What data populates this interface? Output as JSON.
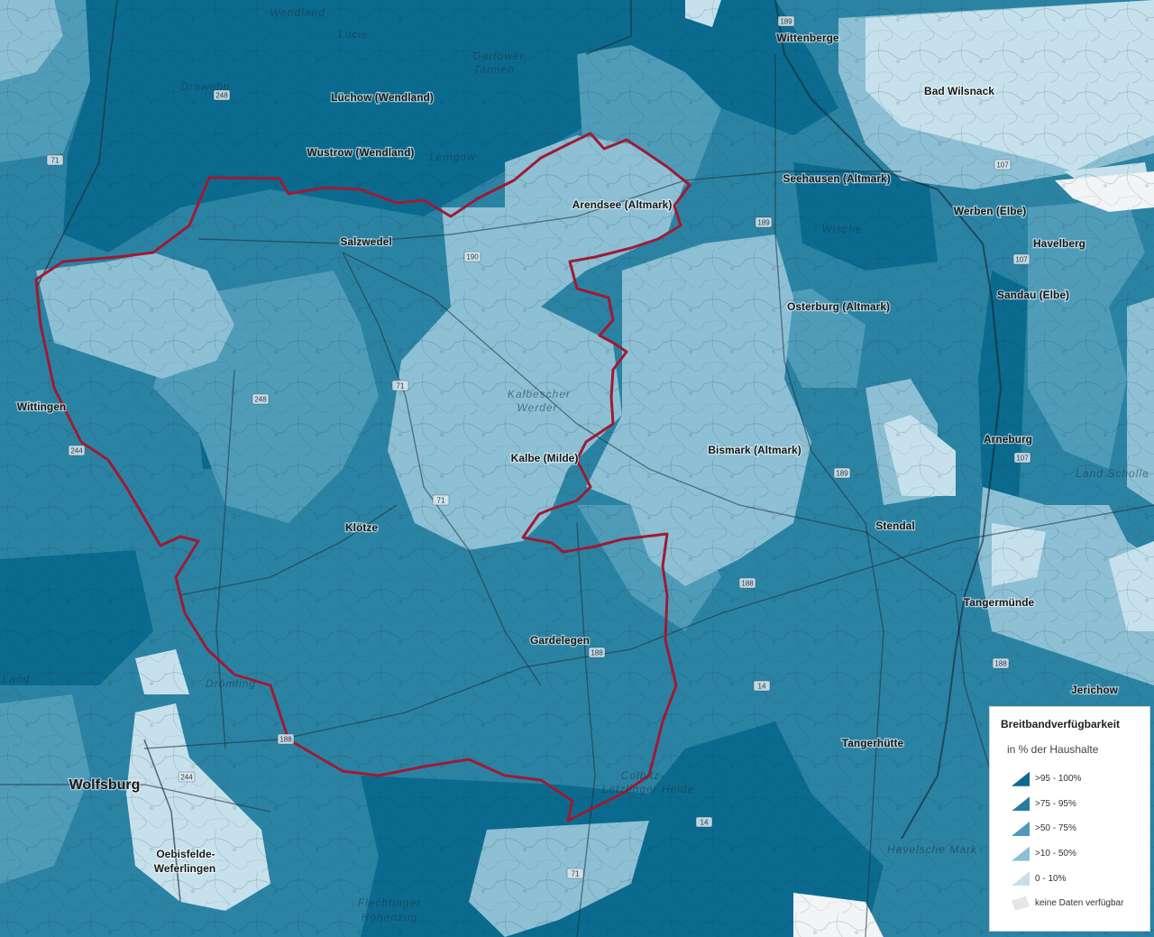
{
  "places": [
    {
      "name": "Wittenberge"
    },
    {
      "name": "Bad Wilsnack"
    },
    {
      "name": "Lüchow (Wendland)"
    },
    {
      "name": "Wustrow (Wendland)"
    },
    {
      "name": "Seehausen (Altmark)"
    },
    {
      "name": "Arendsee (Altmark)"
    },
    {
      "name": "Werben (Elbe)"
    },
    {
      "name": "Salzwedel"
    },
    {
      "name": "Havelberg"
    },
    {
      "name": "Sandau (Elbe)"
    },
    {
      "name": "Osterburg (Altmark)"
    },
    {
      "name": "Wittingen"
    },
    {
      "name": "Arneburg"
    },
    {
      "name": "Bismark (Altmark)"
    },
    {
      "name": "Kalbe (Milde)"
    },
    {
      "name": "Stendal"
    },
    {
      "name": "Klötze"
    },
    {
      "name": "Tangermünde"
    },
    {
      "name": "Gardelegen"
    },
    {
      "name": "Jerichow"
    },
    {
      "name": "Tangerhütte"
    },
    {
      "name": "Wolfsburg"
    },
    {
      "name": "Oebisfelde-"
    },
    {
      "name": "Weferlingen"
    }
  ],
  "regions": [
    {
      "name": "Wendland"
    },
    {
      "name": "Lucie"
    },
    {
      "name": "Gartower"
    },
    {
      "name": "Tannen"
    },
    {
      "name": "Drawehn"
    },
    {
      "name": "Lemgow"
    },
    {
      "name": "Wische"
    },
    {
      "name": "Kalbescher"
    },
    {
      "name": "Werder"
    },
    {
      "name": "Land Scholle"
    },
    {
      "name": "Drömling"
    },
    {
      "name": "Colbitz-"
    },
    {
      "name": "Letzlinger Heide"
    },
    {
      "name": "Havelsche Mark"
    },
    {
      "name": "Flechtinger"
    },
    {
      "name": "Höhenzug"
    },
    {
      "name": "Land"
    }
  ],
  "road_shields": [
    "189",
    "71",
    "248",
    "190",
    "189",
    "107",
    "107",
    "107",
    "188",
    "189",
    "71",
    "188",
    "188",
    "14",
    "14",
    "71",
    "244",
    "244",
    "188",
    "248",
    "71"
  ],
  "legend": {
    "title": "Breitbandverfügbarkeit",
    "subtitle": "in % der Haushalte",
    "items": [
      {
        "label": ">95 - 100%",
        "color": "#0a6a8d"
      },
      {
        "label": ">75 - 95%",
        "color": "#237e9e"
      },
      {
        "label": ">50 - 75%",
        "color": "#4e9bb8"
      },
      {
        "label": ">10 - 50%",
        "color": "#8cc0d3"
      },
      {
        "label": "0 - 10%",
        "color": "#c5e0ea"
      },
      {
        "label": "keine Daten verfügbar",
        "color": "#ececec"
      }
    ]
  },
  "colors": {
    "district_boundary": "#9e1a35"
  }
}
